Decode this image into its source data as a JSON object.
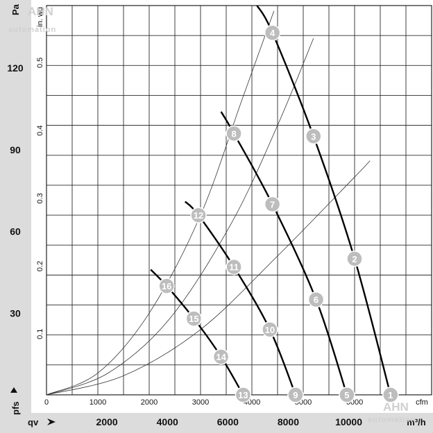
{
  "chart_data": {
    "type": "line",
    "title": "",
    "watermark": {
      "logo": "AHN",
      "text": "automation"
    },
    "y_left": {
      "unit": "Pa",
      "label": "pfs",
      "ticks": [
        "30",
        "60",
        "90",
        "120"
      ],
      "range": [
        0,
        143
      ]
    },
    "y_inner": {
      "unit": "in. wg",
      "ticks": [
        "0.1",
        "0.2",
        "0.3",
        "0.4",
        "0.5"
      ]
    },
    "x_inner": {
      "unit": "cfm",
      "ticks": [
        "0",
        "1000",
        "2000",
        "3000",
        "4000",
        "5000",
        "6000"
      ],
      "range": [
        0,
        7500
      ]
    },
    "x_bottom": {
      "unit": "m³/h",
      "label": "qv",
      "ticks": [
        "2000",
        "4000",
        "6000",
        "8000",
        "10000"
      ]
    },
    "fan_curves": [
      {
        "name": "",
        "points": [
          [
            4100,
            143
          ],
          [
            4400,
            133
          ],
          [
            5200,
            95
          ],
          [
            6000,
            50
          ],
          [
            6700,
            0
          ]
        ]
      },
      {
        "name": "",
        "points": [
          [
            3400,
            104
          ],
          [
            3650,
            96
          ],
          [
            4400,
            70
          ],
          [
            5250,
            35
          ],
          [
            5850,
            0
          ]
        ]
      },
      {
        "name": "",
        "points": [
          [
            2700,
            71
          ],
          [
            2960,
            66
          ],
          [
            3650,
            47
          ],
          [
            4350,
            24
          ],
          [
            4850,
            0
          ]
        ]
      },
      {
        "name": "",
        "points": [
          [
            2030,
            46
          ],
          [
            2340,
            40
          ],
          [
            2870,
            28
          ],
          [
            3400,
            14
          ],
          [
            3830,
            0
          ]
        ]
      }
    ],
    "system_curves": [
      {
        "points": [
          [
            0,
            0
          ],
          [
            1500,
            7
          ],
          [
            3000,
            24
          ],
          [
            4500,
            51
          ],
          [
            6000,
            80
          ],
          [
            6300,
            86
          ]
        ]
      },
      {
        "points": [
          [
            0,
            0
          ],
          [
            1200,
            8
          ],
          [
            2400,
            28
          ],
          [
            3600,
            63
          ],
          [
            4500,
            99
          ],
          [
            5200,
            131
          ]
        ]
      },
      {
        "points": [
          [
            0,
            0
          ],
          [
            1000,
            8
          ],
          [
            2000,
            30
          ],
          [
            3000,
            66
          ],
          [
            3800,
            108
          ],
          [
            4430,
            141
          ]
        ]
      }
    ],
    "operating_points": [
      {
        "id": "1",
        "cfm": 6700,
        "pa": 0
      },
      {
        "id": "2",
        "cfm": 6000,
        "pa": 50
      },
      {
        "id": "3",
        "cfm": 5200,
        "pa": 95
      },
      {
        "id": "4",
        "cfm": 4400,
        "pa": 133
      },
      {
        "id": "5",
        "cfm": 5850,
        "pa": 0
      },
      {
        "id": "6",
        "cfm": 5250,
        "pa": 35
      },
      {
        "id": "7",
        "cfm": 4400,
        "pa": 70
      },
      {
        "id": "8",
        "cfm": 3650,
        "pa": 96
      },
      {
        "id": "9",
        "cfm": 4850,
        "pa": 0
      },
      {
        "id": "10",
        "cfm": 4350,
        "pa": 24
      },
      {
        "id": "11",
        "cfm": 3650,
        "pa": 47
      },
      {
        "id": "12",
        "cfm": 2960,
        "pa": 66
      },
      {
        "id": "13",
        "cfm": 3830,
        "pa": 0
      },
      {
        "id": "14",
        "cfm": 3400,
        "pa": 14
      },
      {
        "id": "15",
        "cfm": 2870,
        "pa": 28
      },
      {
        "id": "16",
        "cfm": 2340,
        "pa": 40
      }
    ],
    "grid": true
  }
}
